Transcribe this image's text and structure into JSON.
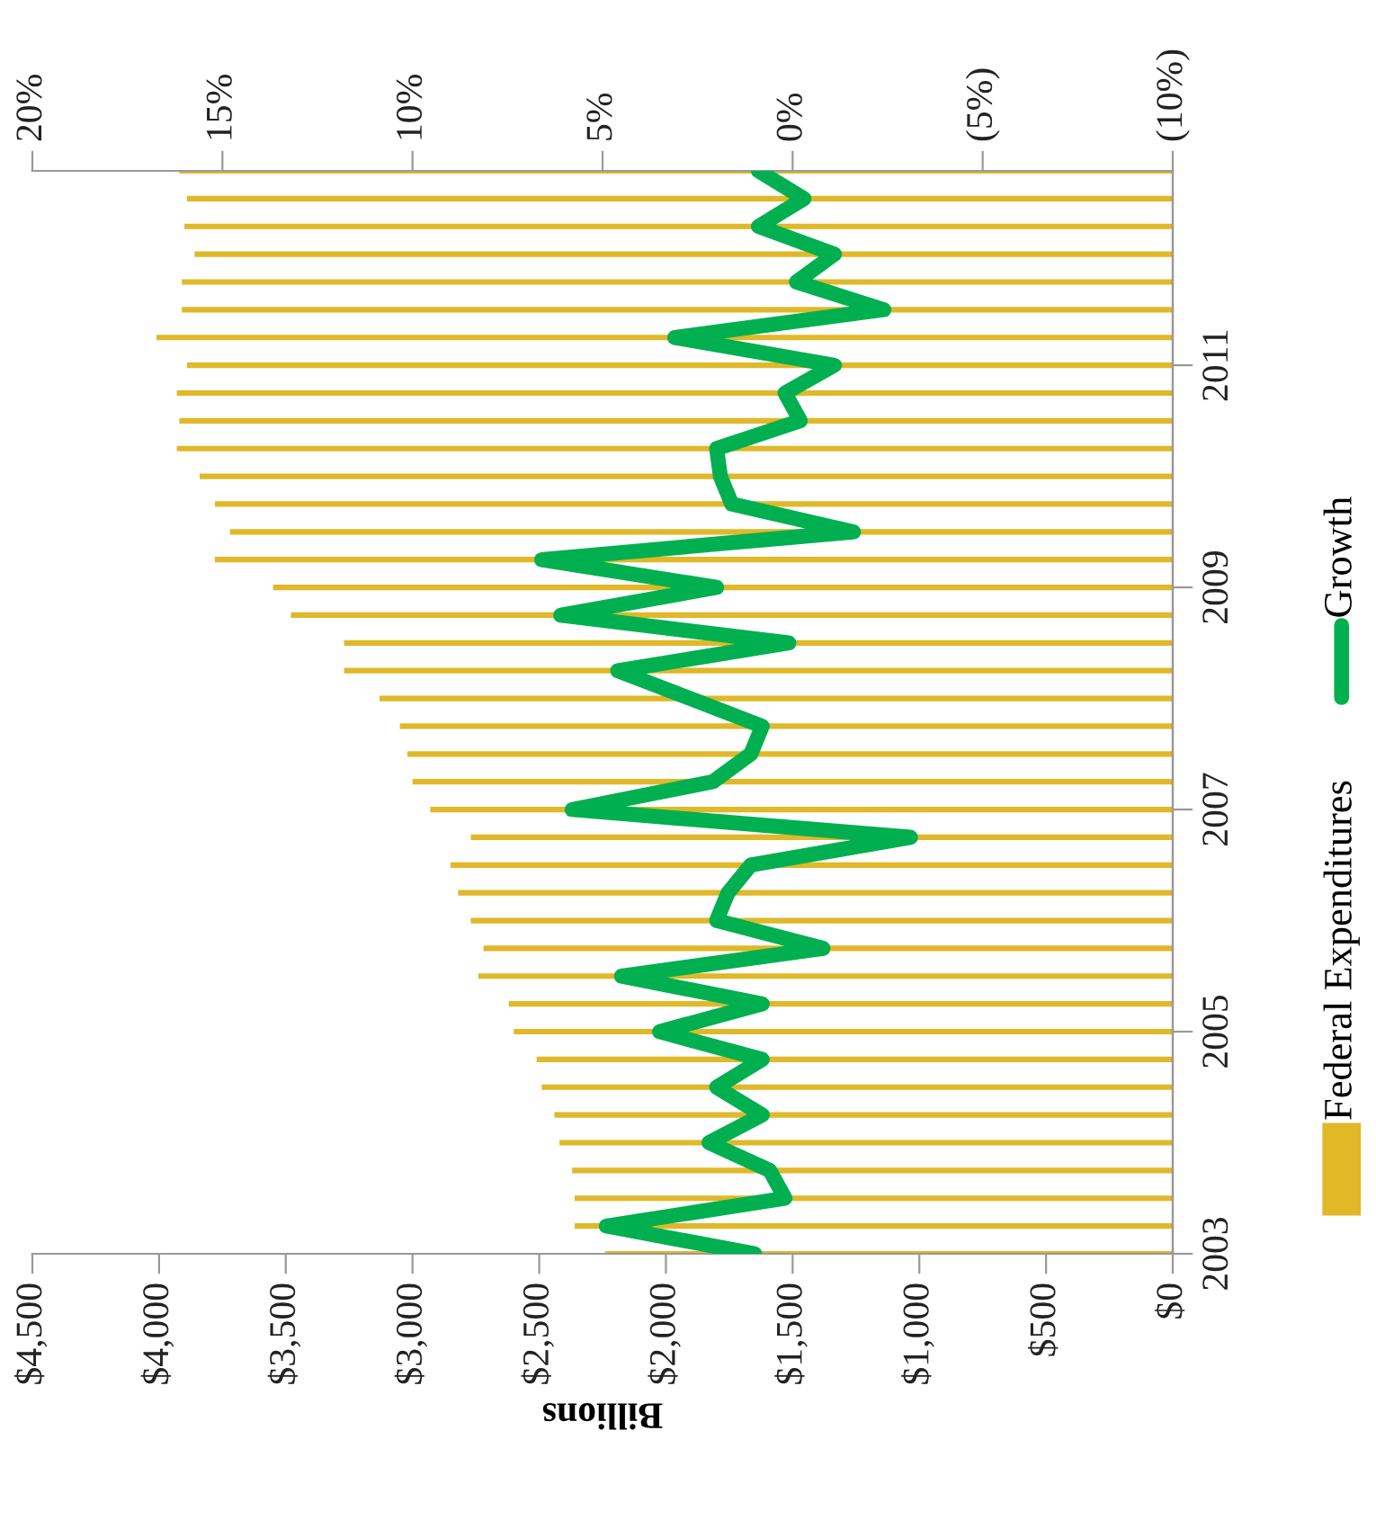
{
  "chart_data": {
    "type": "bar",
    "orientation": "horizontal",
    "xlabel": "Billions",
    "categories": [
      null,
      null,
      null,
      null,
      null,
      null,
      null,
      "2011",
      null,
      null,
      null,
      null,
      null,
      null,
      null,
      "2009",
      null,
      null,
      null,
      null,
      null,
      null,
      null,
      "2007",
      null,
      null,
      null,
      null,
      null,
      null,
      null,
      "2005",
      null,
      null,
      null,
      null,
      null,
      null,
      null,
      "2003"
    ],
    "xlim": [
      4500,
      0
    ],
    "xticks": [
      {
        "value": 4500,
        "label": "$4,500"
      },
      {
        "value": 4000,
        "label": "$4,000"
      },
      {
        "value": 3500,
        "label": "$3,500"
      },
      {
        "value": 3000,
        "label": "$3,000"
      },
      {
        "value": 2500,
        "label": "$2,500"
      },
      {
        "value": 2000,
        "label": "$2,000"
      },
      {
        "value": 1500,
        "label": "$1,500"
      },
      {
        "value": 1000,
        "label": "$1,000"
      },
      {
        "value": 500,
        "label": "$500"
      },
      {
        "value": 0,
        "label": "$0"
      }
    ],
    "x2lim": [
      20,
      -10
    ],
    "x2ticks": [
      {
        "value": 20,
        "label": "20%"
      },
      {
        "value": 15,
        "label": "15%"
      },
      {
        "value": 10,
        "label": "10%"
      },
      {
        "value": 5,
        "label": "5%"
      },
      {
        "value": 0,
        "label": "0%"
      },
      {
        "value": -5,
        "label": "(5%)"
      },
      {
        "value": -10,
        "label": "(10%)"
      }
    ],
    "series": [
      {
        "name": "Federal Expenditures",
        "color": "#e0b828",
        "values": [
          3920,
          3890,
          3900,
          3860,
          3910,
          3910,
          4010,
          3890,
          3930,
          3920,
          3930,
          3840,
          3780,
          3720,
          3780,
          3550,
          3480,
          3270,
          3270,
          3130,
          3050,
          3020,
          3000,
          2930,
          2770,
          2850,
          2820,
          2770,
          2720,
          2740,
          2620,
          2600,
          2510,
          2490,
          2440,
          2420,
          2370,
          2360,
          2360,
          2240
        ]
      },
      {
        "name": "Growth",
        "type": "line",
        "axis": "x2",
        "color": "#00b050",
        "values": [
          0.9,
          -0.3,
          0.9,
          -1.1,
          -0.1,
          -2.4,
          3.1,
          -1.1,
          0.2,
          -0.2,
          2.0,
          1.9,
          1.6,
          -1.6,
          6.6,
          2.0,
          6.1,
          0.1,
          4.6,
          2.7,
          0.8,
          1.1,
          2.1,
          5.8,
          -3.1,
          1.1,
          1.7,
          2.0,
          -0.8,
          4.5,
          0.8,
          3.5,
          0.8,
          2.0,
          0.8,
          2.2,
          0.6,
          0.2,
          4.9,
          1.0
        ]
      }
    ],
    "legend": "right",
    "grid": false,
    "line_style": "solid",
    "marker": "none"
  }
}
